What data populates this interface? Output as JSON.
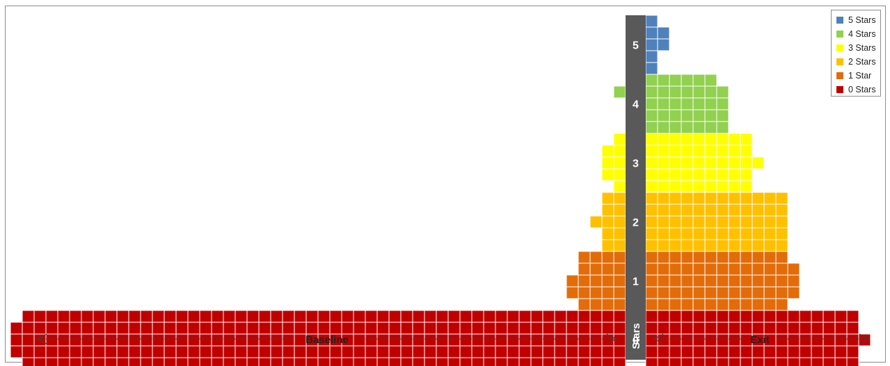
{
  "chart_data": {
    "type": "bar",
    "subtype": "back-to-back unit (waffle) histogram",
    "axis_title": "Stars",
    "left_label": "Baseline",
    "right_label": "Exit",
    "categories": [
      "5",
      "4",
      "3",
      "2",
      "1",
      "0"
    ],
    "series": [
      {
        "name": "Baseline",
        "side": "left",
        "row_counts": [
          [
            0
          ],
          [
            0
          ],
          [
            0,
            1,
            0
          ],
          [
            0
          ],
          [
            0
          ],
          [
            0
          ],
          [
            1
          ],
          [
            0
          ],
          [
            0
          ],
          [
            0
          ],
          [
            1
          ],
          [
            2
          ],
          [
            2
          ],
          [
            2
          ],
          [
            1
          ],
          [
            2
          ],
          [
            2
          ],
          [
            3
          ],
          [
            2
          ],
          [
            2
          ],
          [
            4
          ],
          [
            4
          ],
          [
            5
          ],
          [
            5
          ],
          [
            4
          ],
          [
            51
          ],
          [
            52
          ],
          [
            52
          ],
          [
            52
          ],
          [
            51
          ]
        ]
      },
      {
        "name": "Exit",
        "side": "right",
        "row_counts": [
          [
            1
          ],
          [
            2
          ],
          [
            2
          ],
          [
            1
          ],
          [
            1
          ],
          [
            6
          ],
          [
            7
          ],
          [
            7
          ],
          [
            7
          ],
          [
            7
          ],
          [
            9
          ],
          [
            9
          ],
          [
            10
          ],
          [
            9
          ],
          [
            9
          ],
          [
            12
          ],
          [
            12
          ],
          [
            12
          ],
          [
            12
          ],
          [
            12
          ],
          [
            12
          ],
          [
            13
          ],
          [
            13
          ],
          [
            13
          ],
          [
            12
          ],
          [
            18
          ],
          [
            18
          ],
          [
            19
          ],
          [
            18
          ],
          [
            18
          ]
        ]
      }
    ],
    "legend": {
      "placement": "top-right",
      "entries": [
        {
          "label": "5 Stars",
          "color": "#4f81bd"
        },
        {
          "label": "4 Stars",
          "color": "#92d050"
        },
        {
          "label": "3 Stars",
          "color": "#ffff00"
        },
        {
          "label": "2 Stars",
          "color": "#ffc000"
        },
        {
          "label": "1 Star",
          "color": "#e36c0a"
        },
        {
          "label": "0 Stars",
          "color": "#c00000"
        }
      ]
    },
    "colors": {
      "axis_bar": "#595959",
      "axis_text": "#ffffff",
      "arrow": "#404040"
    }
  }
}
